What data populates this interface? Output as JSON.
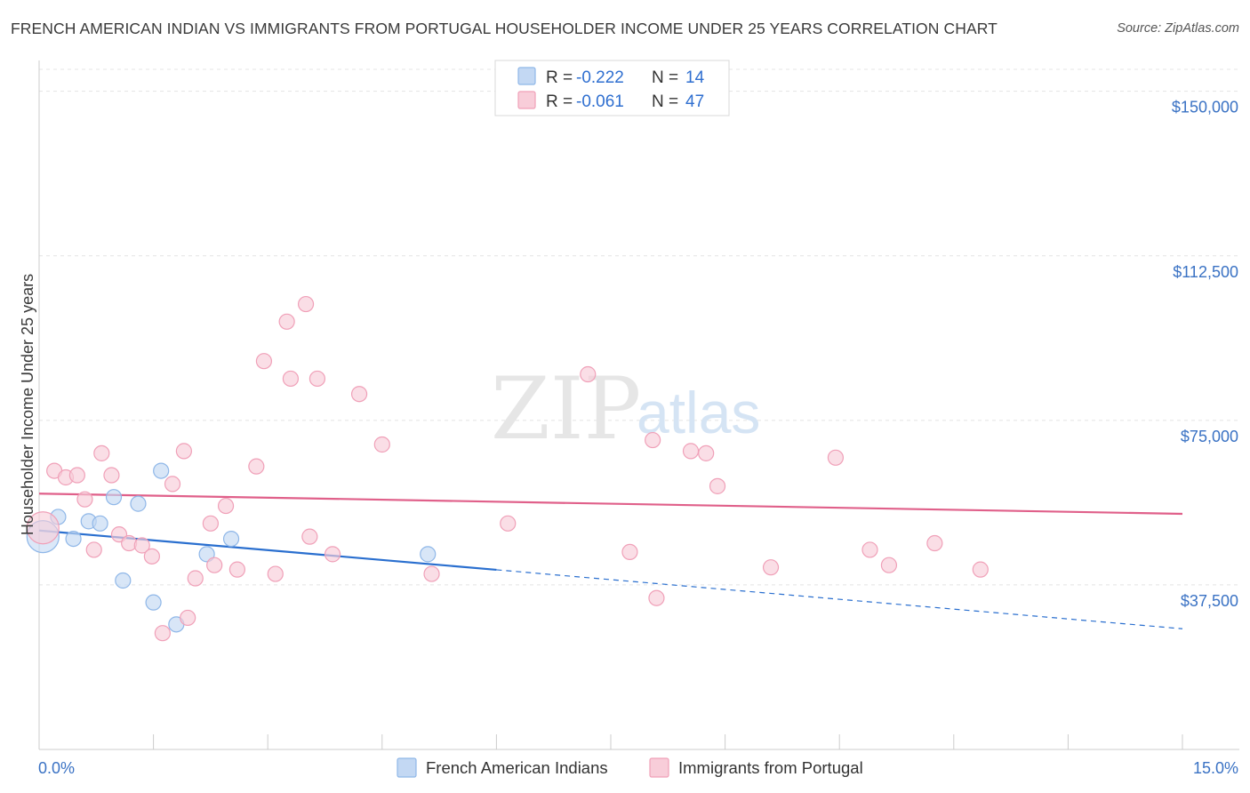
{
  "title": "FRENCH AMERICAN INDIAN VS IMMIGRANTS FROM PORTUGAL HOUSEHOLDER INCOME UNDER 25 YEARS CORRELATION CHART",
  "source": "Source: ZipAtlas.com",
  "watermark": {
    "zip": "ZIP",
    "atlas": "atlas"
  },
  "legend": {
    "rows": [
      {
        "r_label": "R =",
        "r_value": "-0.222",
        "n_label": "N =",
        "n_value": "14"
      },
      {
        "r_label": "R =",
        "r_value": "-0.061",
        "n_label": "N =",
        "n_value": "47"
      }
    ]
  },
  "chart_data": {
    "type": "scatter",
    "title": "FRENCH AMERICAN INDIAN VS IMMIGRANTS FROM PORTUGAL HOUSEHOLDER INCOME UNDER 25 YEARS CORRELATION CHART",
    "xlabel": "",
    "ylabel": "Householder Income Under 25 years",
    "xlim": [
      0,
      15
    ],
    "ylim": [
      0,
      155000
    ],
    "x_tick_labels": [
      "0.0%",
      "15.0%"
    ],
    "y_ticks": [
      37500,
      75000,
      112500,
      150000
    ],
    "y_tick_labels": [
      "$37,500",
      "$75,000",
      "$112,500",
      "$150,000"
    ],
    "series": [
      {
        "name": "French American Indians",
        "color": "#8fb7e8",
        "fill": "#c3d8f3",
        "line_color": "#2a6fcf",
        "trend": {
          "x0": 0,
          "y0": 49900,
          "x1": 15,
          "y1": 27500,
          "solid_until": 6.0
        },
        "points": [
          {
            "x": 0.05,
            "y": 48500,
            "big": true
          },
          {
            "x": 0.25,
            "y": 53000
          },
          {
            "x": 0.45,
            "y": 48000
          },
          {
            "x": 0.65,
            "y": 52000
          },
          {
            "x": 0.8,
            "y": 51500
          },
          {
            "x": 0.98,
            "y": 57500
          },
          {
            "x": 1.1,
            "y": 38500
          },
          {
            "x": 1.3,
            "y": 56000
          },
          {
            "x": 1.5,
            "y": 33500
          },
          {
            "x": 1.6,
            "y": 63500
          },
          {
            "x": 1.8,
            "y": 28500
          },
          {
            "x": 2.2,
            "y": 44500
          },
          {
            "x": 2.52,
            "y": 48000
          },
          {
            "x": 5.1,
            "y": 44500
          }
        ]
      },
      {
        "name": "Immigrants from Portugal",
        "color": "#f0a0b8",
        "fill": "#f8cdd9",
        "line_color": "#e0608a",
        "trend": {
          "x0": 0,
          "y0": 58300,
          "x1": 15,
          "y1": 53700,
          "solid_until": 15
        },
        "points": [
          {
            "x": 0.05,
            "y": 50500,
            "big": true
          },
          {
            "x": 0.2,
            "y": 63500
          },
          {
            "x": 0.35,
            "y": 62000
          },
          {
            "x": 0.5,
            "y": 62500
          },
          {
            "x": 0.6,
            "y": 57000
          },
          {
            "x": 0.72,
            "y": 45500
          },
          {
            "x": 0.82,
            "y": 67500
          },
          {
            "x": 0.95,
            "y": 62500
          },
          {
            "x": 1.05,
            "y": 49000
          },
          {
            "x": 1.18,
            "y": 47000
          },
          {
            "x": 1.35,
            "y": 46500
          },
          {
            "x": 1.48,
            "y": 44000
          },
          {
            "x": 1.62,
            "y": 26500
          },
          {
            "x": 1.75,
            "y": 60500
          },
          {
            "x": 1.9,
            "y": 68000
          },
          {
            "x": 1.95,
            "y": 30000
          },
          {
            "x": 2.05,
            "y": 39000
          },
          {
            "x": 2.25,
            "y": 51500
          },
          {
            "x": 2.3,
            "y": 42000
          },
          {
            "x": 2.45,
            "y": 55500
          },
          {
            "x": 2.6,
            "y": 41000
          },
          {
            "x": 2.85,
            "y": 64500
          },
          {
            "x": 2.95,
            "y": 88500
          },
          {
            "x": 3.1,
            "y": 40000
          },
          {
            "x": 3.25,
            "y": 97500
          },
          {
            "x": 3.3,
            "y": 84500
          },
          {
            "x": 3.5,
            "y": 101500
          },
          {
            "x": 3.55,
            "y": 48500
          },
          {
            "x": 3.65,
            "y": 84500
          },
          {
            "x": 3.85,
            "y": 44500
          },
          {
            "x": 4.2,
            "y": 81000
          },
          {
            "x": 4.5,
            "y": 69500
          },
          {
            "x": 5.15,
            "y": 40000
          },
          {
            "x": 6.15,
            "y": 51500
          },
          {
            "x": 7.2,
            "y": 85500
          },
          {
            "x": 7.75,
            "y": 45000
          },
          {
            "x": 8.05,
            "y": 70500
          },
          {
            "x": 8.1,
            "y": 34500
          },
          {
            "x": 8.55,
            "y": 68000
          },
          {
            "x": 8.75,
            "y": 67500
          },
          {
            "x": 8.9,
            "y": 60000
          },
          {
            "x": 9.6,
            "y": 41500
          },
          {
            "x": 10.45,
            "y": 66500
          },
          {
            "x": 10.9,
            "y": 45500
          },
          {
            "x": 11.15,
            "y": 42000
          },
          {
            "x": 11.75,
            "y": 47000
          },
          {
            "x": 12.35,
            "y": 41000
          }
        ]
      }
    ]
  }
}
